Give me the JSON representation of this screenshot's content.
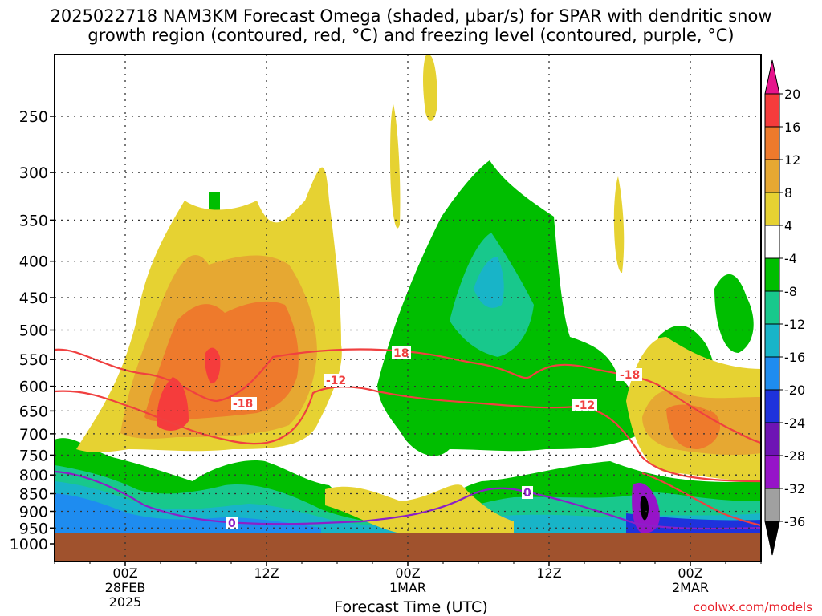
{
  "title": {
    "line1": "2025022718 NAM3KM Forecast Omega (shaded, μbar/s) for SPAR with dendritic snow",
    "line2": "growth region (contoured, red, °C) and freezing level (contoured, purple, °C)"
  },
  "credit": "coolwx.com/models",
  "chart_data": {
    "type": "time-height cross section",
    "xlabel": "Forecast Time (UTC)",
    "ylabel": "",
    "x_ticks": [
      {
        "label": "00Z",
        "sub": [
          "28FEB",
          "2025"
        ],
        "hour": 6
      },
      {
        "label": "12Z",
        "sub": [],
        "hour": 18
      },
      {
        "label": "00Z",
        "sub": [
          "1MAR"
        ],
        "hour": 30
      },
      {
        "label": "12Z",
        "sub": [],
        "hour": 42
      },
      {
        "label": "00Z",
        "sub": [
          "2MAR"
        ],
        "hour": 54
      }
    ],
    "x_range_hours": [
      0,
      60
    ],
    "y_ticks_hpa": [
      250,
      300,
      350,
      400,
      450,
      500,
      550,
      600,
      650,
      700,
      750,
      800,
      850,
      900,
      950,
      1000
    ],
    "y_scale": "log-pressure",
    "ground_color": "#a0522d",
    "colorbar": {
      "labels": [
        "20",
        "16",
        "12",
        "8",
        "4",
        "-4",
        "-8",
        "-12",
        "-16",
        "-20",
        "-24",
        "-28",
        "-32",
        "-36"
      ],
      "colors": [
        "#f53c3c",
        "#ee7a2c",
        "#e6a832",
        "#e6d232",
        "#ffffff",
        "#00be00",
        "#18c88c",
        "#18b4c8",
        "#1e8cf0",
        "#1e32dc",
        "#6e14b4",
        "#9614c8",
        "#a0a0a0",
        "#000000"
      ],
      "top_arrow_color": "#e6148c",
      "bottom_arrow_color": "#000000"
    },
    "contours": [
      {
        "name": "-18",
        "color": "#f04040",
        "label_positions_hours": [
          18.3,
          29.6,
          47.8
        ]
      },
      {
        "name": "-12",
        "color": "#f04040",
        "label_positions_hours": [
          24.6,
          44.6
        ]
      },
      {
        "name": "0",
        "color": "#8c1fc8",
        "label_positions_hours": [
          14.9,
          40.6
        ]
      }
    ]
  }
}
